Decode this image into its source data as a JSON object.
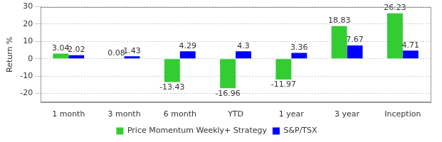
{
  "chart_data": {
    "type": "bar",
    "categories": [
      "1 month",
      "3 month",
      "6 month",
      "YTD",
      "1 year",
      "3 year",
      "Inception"
    ],
    "series": [
      {
        "name": "Price Momentum Weekly+ Strategy",
        "color": "#33cc33",
        "values": [
          3.04,
          0.08,
          -13.43,
          -16.96,
          -11.97,
          18.83,
          26.23
        ]
      },
      {
        "name": "S&P/TSX",
        "color": "#0000ff",
        "values": [
          2.02,
          1.43,
          4.29,
          4.3,
          3.36,
          7.67,
          4.71
        ]
      }
    ],
    "ylabel": "Return %",
    "ylim": [
      -25,
      30
    ],
    "yticks": [
      -20,
      -10,
      0,
      10,
      20,
      30
    ],
    "grid": true,
    "legend": "bottom",
    "data_labels": true
  }
}
